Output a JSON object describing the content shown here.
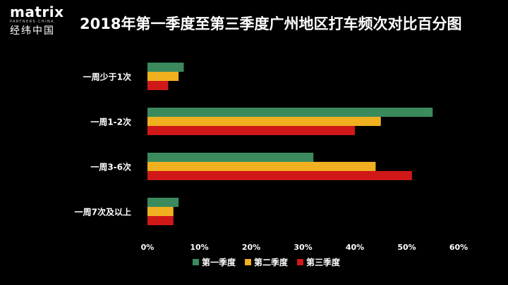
{
  "logo": {
    "main": "matrix",
    "sub": "PARTNERS CHINA",
    "cn": "经纬中国"
  },
  "chart_data": {
    "type": "bar",
    "orientation": "horizontal",
    "title": "2018年第一季度至第三季度广州地区打车频次对比百分图",
    "categories": [
      "一周少于1次",
      "一周1-2次",
      "一周3-6次",
      "一周7次及以上"
    ],
    "series": [
      {
        "name": "第一季度",
        "color": "#3a8a5e",
        "values": [
          7,
          55,
          32,
          6
        ]
      },
      {
        "name": "第二季度",
        "color": "#f0b020",
        "values": [
          6,
          45,
          44,
          5
        ]
      },
      {
        "name": "第三季度",
        "color": "#d01818",
        "values": [
          4,
          40,
          51,
          5
        ]
      }
    ],
    "xlim": [
      0,
      60
    ],
    "x_ticks": [
      "0%",
      "10%",
      "20%",
      "30%",
      "40%",
      "50%",
      "60%"
    ],
    "grid": false,
    "legend_position": "bottom"
  }
}
